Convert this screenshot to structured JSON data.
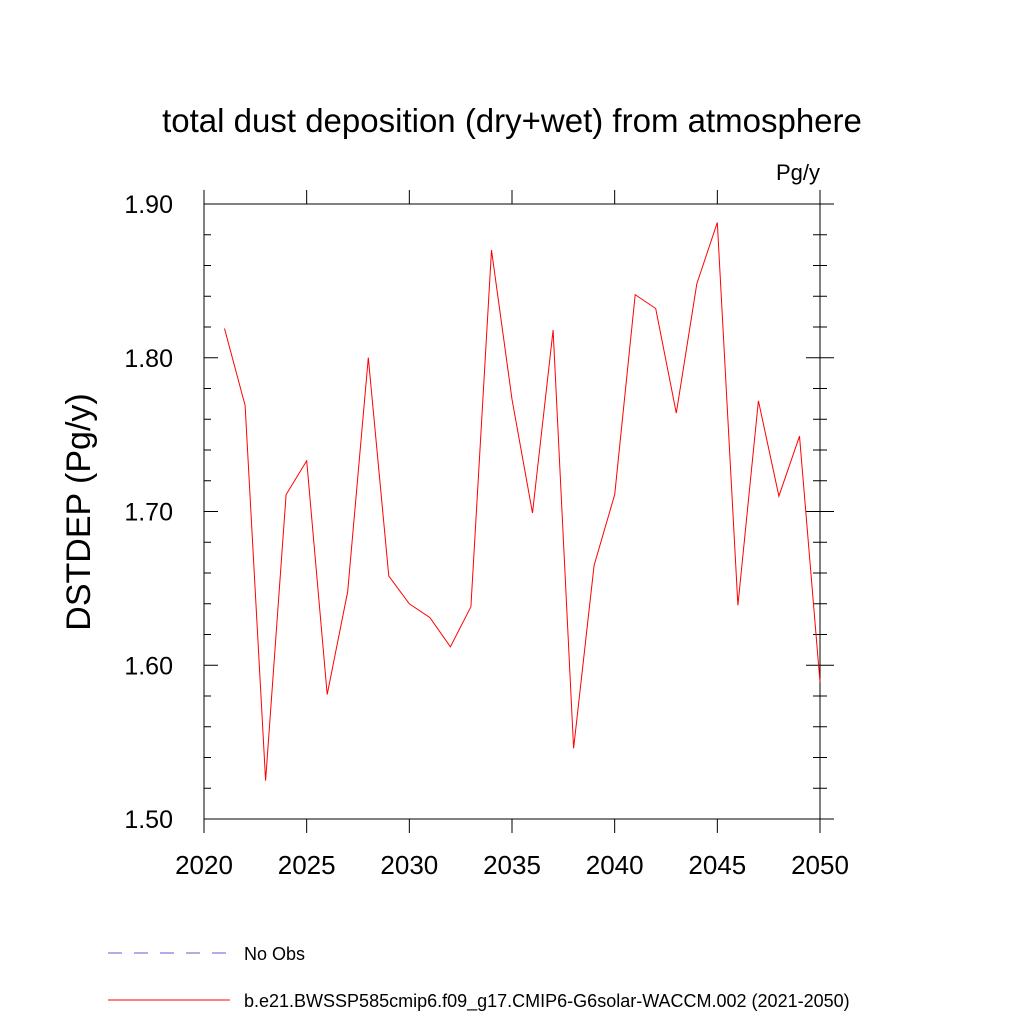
{
  "chart_data": {
    "type": "line",
    "title": "total dust deposition (dry+wet) from atmosphere",
    "units": "Pg/y",
    "xlabel": "",
    "ylabel": "DSTDEP  (Pg/y)",
    "xlim": [
      2020,
      2050
    ],
    "ylim": [
      1.5,
      1.9
    ],
    "x_ticks": [
      2020,
      2025,
      2030,
      2035,
      2040,
      2045,
      2050
    ],
    "x_tick_labels": [
      "2020",
      "2025",
      "2030",
      "2035",
      "2040",
      "2045",
      "2050"
    ],
    "y_ticks": [
      1.5,
      1.6,
      1.7,
      1.8,
      1.9
    ],
    "y_tick_labels": [
      "1.50",
      "1.60",
      "1.70",
      "1.80",
      "1.90"
    ],
    "grid": false,
    "legend_position": "bottom",
    "series": [
      {
        "name": "b.e21.BWSSP585cmip6.f09_g17.CMIP6-G6solar-WACCM.002 (2021-2050)",
        "color": "#ff0000",
        "dash": "solid",
        "x": [
          2021,
          2022,
          2023,
          2024,
          2025,
          2026,
          2027,
          2028,
          2029,
          2030,
          2031,
          2032,
          2033,
          2034,
          2035,
          2036,
          2037,
          2038,
          2039,
          2040,
          2041,
          2042,
          2043,
          2044,
          2045,
          2046,
          2047,
          2048,
          2049,
          2050
        ],
        "values": [
          1.819,
          1.769,
          1.525,
          1.711,
          1.733,
          1.581,
          1.648,
          1.8,
          1.658,
          1.64,
          1.631,
          1.612,
          1.638,
          1.87,
          1.773,
          1.699,
          1.818,
          1.546,
          1.665,
          1.711,
          1.841,
          1.832,
          1.764,
          1.848,
          1.888,
          1.639,
          1.772,
          1.71,
          1.749,
          1.589
        ]
      }
    ],
    "legend": [
      {
        "label": "No Obs",
        "color": "#6a5acd",
        "dash": "dashed"
      },
      {
        "label": "b.e21.BWSSP585cmip6.f09_g17.CMIP6-G6solar-WACCM.002 (2021-2050)",
        "color": "#ff0000",
        "dash": "solid"
      }
    ]
  }
}
